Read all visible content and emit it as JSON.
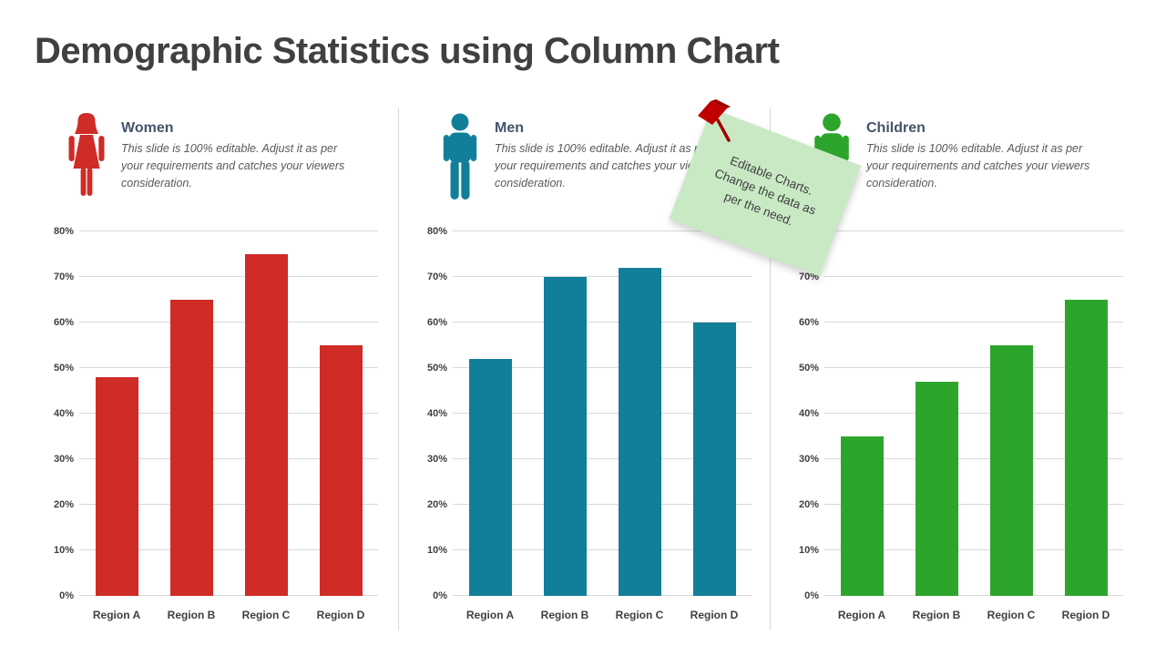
{
  "title": "Demographic Statistics using Column Chart",
  "description": "This slide is 100% editable. Adjust it as per your requirements and catches your viewers consideration.",
  "sections": [
    {
      "label": "Women",
      "accent": "#cf2b27"
    },
    {
      "label": "Men",
      "accent": "#117f9a"
    },
    {
      "label": "Children",
      "accent": "#2da52d"
    }
  ],
  "sticky_note": {
    "lines": [
      "Editable Charts.",
      "Change the data as",
      "per the need."
    ],
    "bg_color": "#c9e9c5",
    "pin_color": "#c00000"
  },
  "colors": {
    "title_text": "#404040",
    "section_title_text": "#44546a",
    "description_text": "#595959",
    "gridline": "#d9d9d9",
    "axis_text": "#404040"
  },
  "chart_data": [
    {
      "type": "bar",
      "series_name": "Women",
      "categories": [
        "Region A",
        "Region B",
        "Region C",
        "Region D"
      ],
      "values": [
        48,
        65,
        75,
        55
      ],
      "unit": "%",
      "bar_color": "#cf2b27",
      "ylim": [
        0,
        80
      ],
      "yticks": [
        "0%",
        "10%",
        "20%",
        "30%",
        "40%",
        "50%",
        "60%",
        "70%",
        "80%"
      ],
      "grid": true,
      "legend": false
    },
    {
      "type": "bar",
      "series_name": "Men",
      "categories": [
        "Region A",
        "Region B",
        "Region C",
        "Region D"
      ],
      "values": [
        52,
        70,
        72,
        60
      ],
      "unit": "%",
      "bar_color": "#117f9a",
      "ylim": [
        0,
        80
      ],
      "yticks": [
        "0%",
        "10%",
        "20%",
        "30%",
        "40%",
        "50%",
        "60%",
        "70%",
        "80%"
      ],
      "grid": true,
      "legend": false
    },
    {
      "type": "bar",
      "series_name": "Children",
      "categories": [
        "Region A",
        "Region B",
        "Region C",
        "Region D"
      ],
      "values": [
        35,
        47,
        55,
        65
      ],
      "unit": "%",
      "bar_color": "#2da52d",
      "ylim": [
        0,
        80
      ],
      "yticks": [
        "0%",
        "10%",
        "20%",
        "30%",
        "40%",
        "50%",
        "60%",
        "70%",
        "80%"
      ],
      "grid": true,
      "legend": false
    }
  ]
}
